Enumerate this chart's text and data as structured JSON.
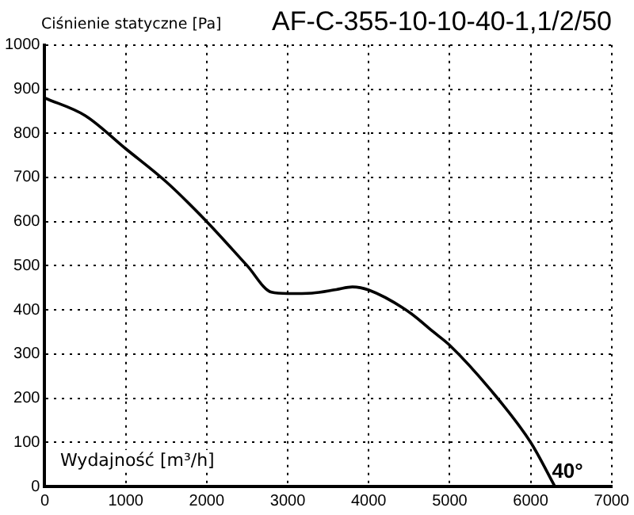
{
  "chart_data": {
    "type": "line",
    "title": "AF-C-355-10-10-40-1,1/2/50",
    "ylabel": "Ciśnienie statyczne [Pa]",
    "xlabel": "Wydajność [m³/h]",
    "x": [
      0,
      500,
      1000,
      1500,
      2000,
      2500,
      2800,
      3000,
      3300,
      3600,
      3800,
      4000,
      4500,
      4800,
      5000,
      5500,
      6000,
      6300
    ],
    "series": [
      {
        "color": "#000000",
        "values": [
          880,
          840,
          765,
          690,
          600,
          500,
          440,
          437,
          438,
          446,
          452,
          445,
          395,
          350,
          320,
          220,
          100,
          0
        ]
      }
    ],
    "xlim": [
      0,
      7000
    ],
    "xticks": [
      0,
      1000,
      2000,
      3000,
      4000,
      5000,
      6000,
      7000
    ],
    "ylim": [
      0,
      1000
    ],
    "yticks": [
      0,
      100,
      200,
      300,
      400,
      500,
      600,
      700,
      800,
      900,
      1000
    ],
    "grid": true,
    "line_style": "solid",
    "marker": "none",
    "legend": false,
    "annotations": [
      "40°"
    ]
  }
}
